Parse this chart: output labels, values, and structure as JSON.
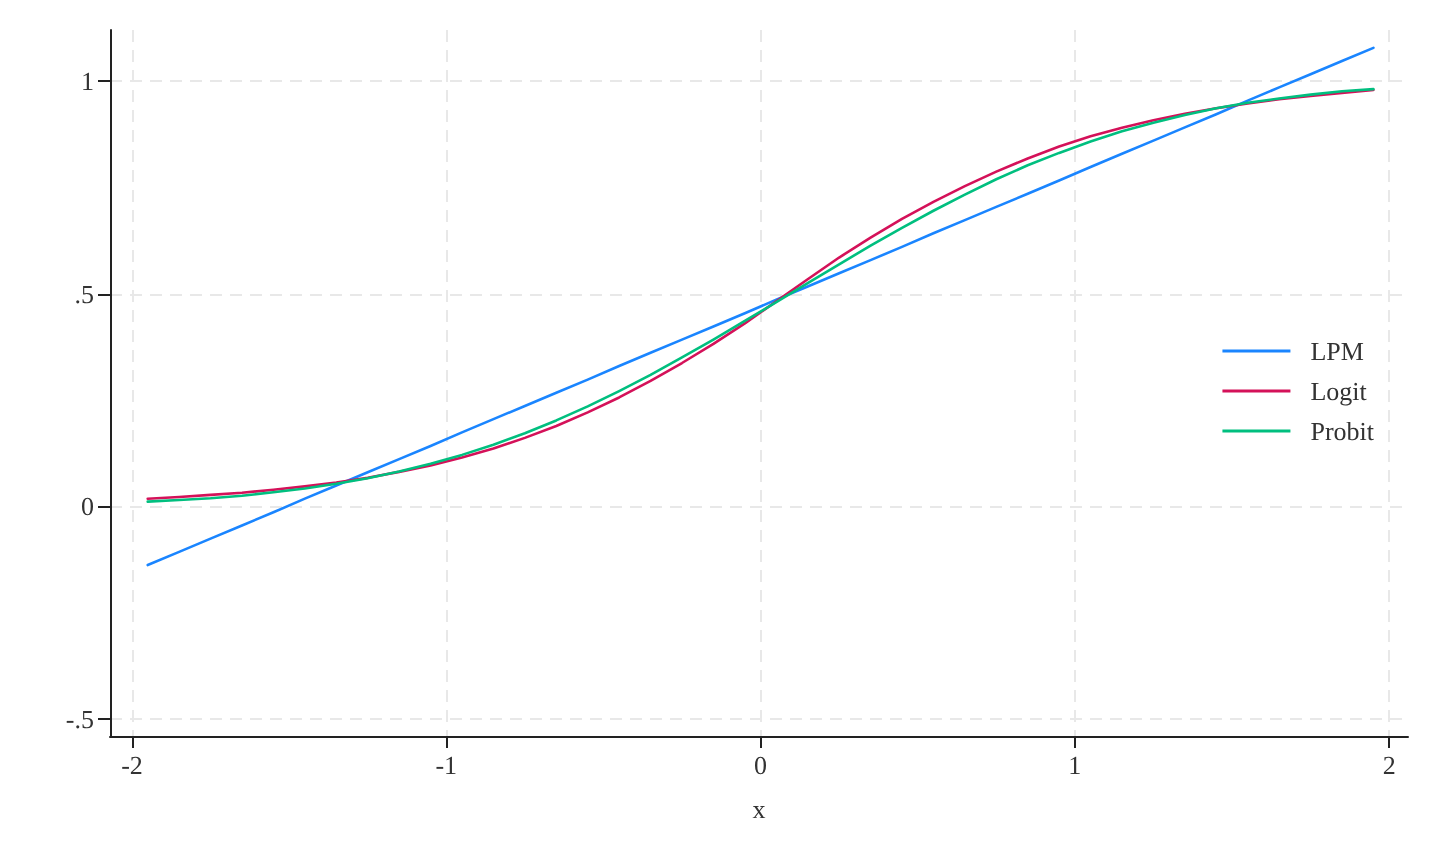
{
  "chart_data": {
    "type": "line",
    "xlabel": "x",
    "x": [
      -1.95,
      -1.85,
      -1.75,
      -1.65,
      -1.55,
      -1.45,
      -1.35,
      -1.25,
      -1.15,
      -1.05,
      -0.95,
      -0.85,
      -0.75,
      -0.65,
      -0.55,
      -0.45,
      -0.35,
      -0.25,
      -0.15,
      -0.05,
      0.05,
      0.15,
      0.25,
      0.35,
      0.45,
      0.55,
      0.65,
      0.75,
      0.85,
      0.95,
      1.05,
      1.15,
      1.25,
      1.35,
      1.45,
      1.55,
      1.65,
      1.75,
      1.85,
      1.95
    ],
    "series": [
      {
        "name": "LPM",
        "color": "#1a85ff",
        "values": [
          -0.138,
          -0.107,
          -0.076,
          -0.045,
          -0.014,
          0.018,
          0.049,
          0.08,
          0.111,
          0.142,
          0.174,
          0.205,
          0.236,
          0.267,
          0.298,
          0.33,
          0.361,
          0.392,
          0.423,
          0.454,
          0.486,
          0.517,
          0.548,
          0.579,
          0.61,
          0.642,
          0.673,
          0.704,
          0.735,
          0.766,
          0.798,
          0.829,
          0.86,
          0.891,
          0.922,
          0.954,
          0.985,
          1.016,
          1.047,
          1.078
        ]
      },
      {
        "name": "Logit",
        "color": "#d41159",
        "values": [
          0.018,
          0.022,
          0.027,
          0.032,
          0.039,
          0.047,
          0.056,
          0.067,
          0.081,
          0.096,
          0.115,
          0.136,
          0.161,
          0.189,
          0.221,
          0.256,
          0.295,
          0.337,
          0.382,
          0.43,
          0.482,
          0.534,
          0.585,
          0.632,
          0.676,
          0.716,
          0.753,
          0.787,
          0.818,
          0.846,
          0.87,
          0.89,
          0.908,
          0.923,
          0.936,
          0.947,
          0.957,
          0.965,
          0.972,
          0.979
        ]
      },
      {
        "name": "Probit",
        "color": "#00bf7f",
        "values": [
          0.011,
          0.015,
          0.019,
          0.025,
          0.033,
          0.042,
          0.053,
          0.066,
          0.082,
          0.1,
          0.121,
          0.145,
          0.172,
          0.202,
          0.235,
          0.271,
          0.309,
          0.35,
          0.392,
          0.436,
          0.48,
          0.525,
          0.569,
          0.613,
          0.655,
          0.695,
          0.733,
          0.769,
          0.802,
          0.831,
          0.858,
          0.882,
          0.902,
          0.92,
          0.936,
          0.949,
          0.959,
          0.968,
          0.976,
          0.981
        ]
      }
    ],
    "xlim": [
      -2.07,
      2.06
    ],
    "xticks": [
      -2,
      -1,
      0,
      1,
      2
    ],
    "ylim": [
      -0.54,
      1.12
    ],
    "yticks": [
      {
        "value": -0.5,
        "label": "-.5"
      },
      0,
      {
        "value": 0.5,
        "label": ".5"
      },
      1
    ],
    "grid": true,
    "legend": "right",
    "marker": "none",
    "line_style": "solid"
  }
}
